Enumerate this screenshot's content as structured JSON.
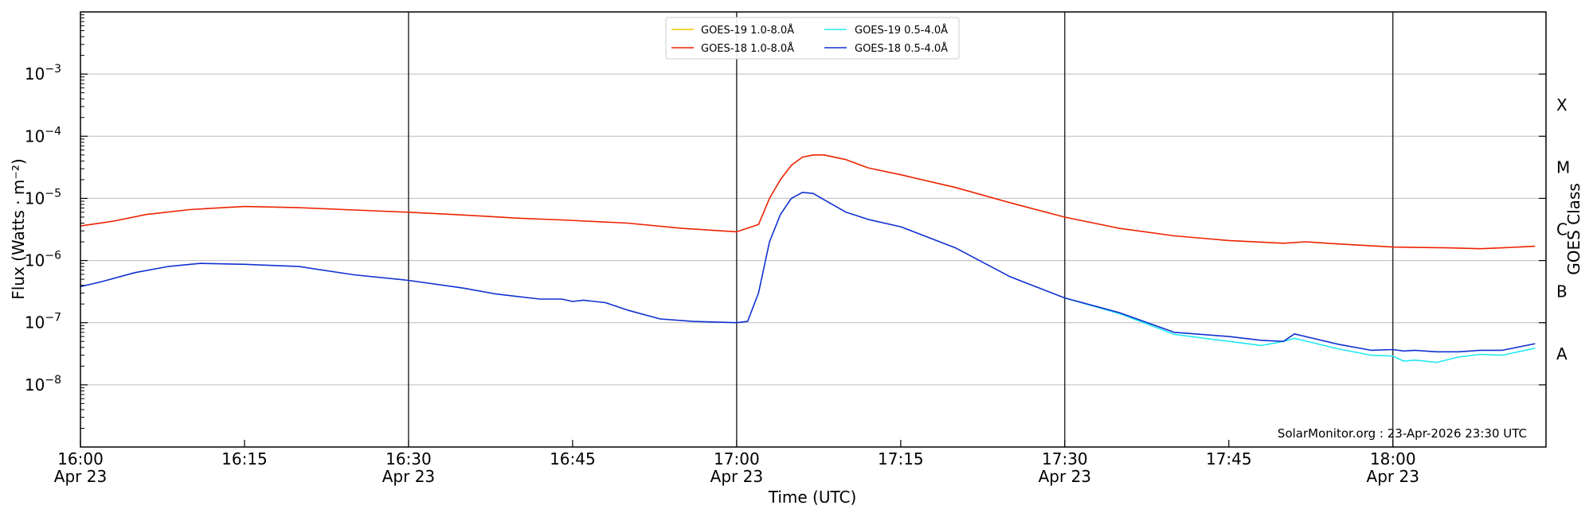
{
  "chart_data": {
    "type": "line",
    "xlabel": "Time (UTC)",
    "ylabel": "Flux (Watts · m⁻²)",
    "ylabel_right": "GOES Class",
    "y_scale": "log",
    "ylim": [
      1e-09,
      0.01
    ],
    "xlim": [
      "16:00",
      "18:14"
    ],
    "grid": "horizontal",
    "legend_position": "top-center",
    "watermark": "SolarMonitor.org : 23-Apr-2026 23:30 UTC",
    "x_ticks": [
      {
        "time": "16:00",
        "label": "16:00",
        "sub": "Apr 23"
      },
      {
        "time": "16:15",
        "label": "16:15",
        "sub": ""
      },
      {
        "time": "16:30",
        "label": "16:30",
        "sub": "Apr 23"
      },
      {
        "time": "16:45",
        "label": "16:45",
        "sub": ""
      },
      {
        "time": "17:00",
        "label": "17:00",
        "sub": "Apr 23"
      },
      {
        "time": "17:15",
        "label": "17:15",
        "sub": ""
      },
      {
        "time": "17:30",
        "label": "17:30",
        "sub": "Apr 23"
      },
      {
        "time": "17:45",
        "label": "17:45",
        "sub": ""
      },
      {
        "time": "18:00",
        "label": "18:00",
        "sub": "Apr 23"
      }
    ],
    "vlines": [
      "16:30",
      "17:00",
      "17:30",
      "18:00"
    ],
    "y_ticks": [
      {
        "value": 1e-08,
        "base": "10",
        "exp": "−8"
      },
      {
        "value": 1e-07,
        "base": "10",
        "exp": "−7"
      },
      {
        "value": 1e-06,
        "base": "10",
        "exp": "−6"
      },
      {
        "value": 1e-05,
        "base": "10",
        "exp": "−5"
      },
      {
        "value": 0.0001,
        "base": "10",
        "exp": "−4"
      },
      {
        "value": 0.001,
        "base": "10",
        "exp": "−3"
      }
    ],
    "goes_classes": [
      {
        "label": "A",
        "value": 3.16e-08
      },
      {
        "label": "B",
        "value": 3.16e-07
      },
      {
        "label": "C",
        "value": 3.16e-06
      },
      {
        "label": "M",
        "value": 3.16e-05
      },
      {
        "label": "X",
        "value": 0.000316
      }
    ],
    "series": [
      {
        "name": "GOES-19 1.0-8.0Å",
        "color": "#f5c400",
        "x": [],
        "y": []
      },
      {
        "name": "GOES-18 1.0-8.0Å",
        "color": "#ee2200",
        "x": [
          "16:00",
          "16:03",
          "16:06",
          "16:10",
          "16:15",
          "16:20",
          "16:25",
          "16:30",
          "16:35",
          "16:40",
          "16:44",
          "16:50",
          "16:55",
          "17:00",
          "17:02",
          "17:03",
          "17:04",
          "17:05",
          "17:06",
          "17:07",
          "17:08",
          "17:10",
          "17:12",
          "17:15",
          "17:20",
          "17:25",
          "17:30",
          "17:35",
          "17:40",
          "17:45",
          "17:50",
          "17:52",
          "17:55",
          "18:00",
          "18:05",
          "18:08",
          "18:10",
          "18:13"
        ],
        "y": [
          3.6e-06,
          4.3e-06,
          5.5e-06,
          6.6e-06,
          7.4e-06,
          7.1e-06,
          6.5e-06,
          6e-06,
          5.4e-06,
          4.8e-06,
          4.5e-06,
          4e-06,
          3.3e-06,
          2.9e-06,
          3.8e-06,
          1e-05,
          2e-05,
          3.4e-05,
          4.6e-05,
          5e-05,
          5e-05,
          4.2e-05,
          3.1e-05,
          2.4e-05,
          1.5e-05,
          8.5e-06,
          5e-06,
          3.3e-06,
          2.5e-06,
          2.1e-06,
          1.9e-06,
          2e-06,
          1.85e-06,
          1.65e-06,
          1.6e-06,
          1.55e-06,
          1.6e-06,
          1.7e-06
        ]
      },
      {
        "name": "GOES-19 0.5-4.0Å",
        "color": "#22e8f0",
        "x": [
          "17:30",
          "17:35",
          "17:40",
          "17:45",
          "17:48",
          "17:50",
          "17:51",
          "17:55",
          "17:58",
          "18:00",
          "18:01",
          "18:02",
          "18:04",
          "18:06",
          "18:08",
          "18:10",
          "18:13"
        ],
        "y": [
          2.5e-07,
          1.4e-07,
          6.5e-08,
          5e-08,
          4.3e-08,
          5e-08,
          5.6e-08,
          3.8e-08,
          3e-08,
          2.9e-08,
          2.4e-08,
          2.5e-08,
          2.3e-08,
          2.8e-08,
          3.1e-08,
          3e-08,
          3.9e-08
        ]
      },
      {
        "name": "GOES-18 0.5-4.0Å",
        "color": "#1030d0",
        "x": [
          "16:00",
          "16:02",
          "16:05",
          "16:08",
          "16:11",
          "16:15",
          "16:20",
          "16:25",
          "16:30",
          "16:35",
          "16:38",
          "16:42",
          "16:44",
          "16:45",
          "16:46",
          "16:47",
          "16:48",
          "16:50",
          "16:53",
          "16:56",
          "17:00",
          "17:01",
          "17:02",
          "17:03",
          "17:04",
          "17:05",
          "17:06",
          "17:07",
          "17:08",
          "17:10",
          "17:12",
          "17:15",
          "17:20",
          "17:25",
          "17:30",
          "17:35",
          "17:40",
          "17:45",
          "17:48",
          "17:50",
          "17:51",
          "17:55",
          "17:58",
          "18:00",
          "18:01",
          "18:02",
          "18:04",
          "18:06",
          "18:08",
          "18:10",
          "18:13"
        ],
        "y": [
          3.8e-07,
          4.6e-07,
          6.4e-07,
          8e-07,
          9e-07,
          8.7e-07,
          8e-07,
          5.9e-07,
          4.8e-07,
          3.6e-07,
          2.9e-07,
          2.4e-07,
          2.4e-07,
          2.2e-07,
          2.3e-07,
          2.2e-07,
          2.1e-07,
          1.6e-07,
          1.15e-07,
          1.05e-07,
          1e-07,
          1.05e-07,
          3e-07,
          2e-06,
          5.5e-06,
          1e-05,
          1.25e-05,
          1.2e-05,
          9.5e-06,
          6e-06,
          4.6e-06,
          3.5e-06,
          1.6e-06,
          5.5e-07,
          2.5e-07,
          1.45e-07,
          7e-08,
          6e-08,
          5.2e-08,
          5e-08,
          6.6e-08,
          4.5e-08,
          3.6e-08,
          3.7e-08,
          3.5e-08,
          3.6e-08,
          3.4e-08,
          3.4e-08,
          3.6e-08,
          3.6e-08,
          4.6e-08
        ]
      }
    ]
  }
}
